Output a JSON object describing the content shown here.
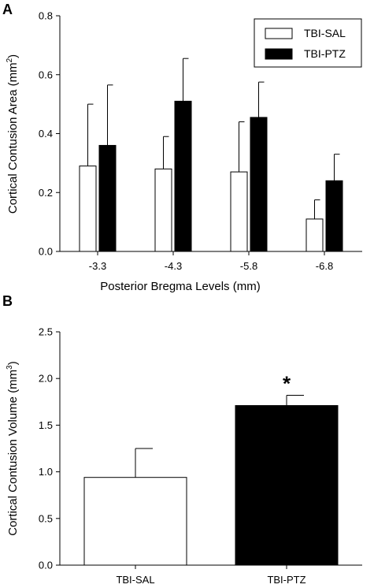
{
  "panels": {
    "a": {
      "label": "A"
    },
    "b": {
      "label": "B"
    }
  },
  "chart_data": [
    {
      "type": "bar",
      "categories": [
        "-3.3",
        "-4.3",
        "-5.8",
        "-6.8"
      ],
      "series": [
        {
          "name": "TBI-SAL",
          "values": [
            0.29,
            0.28,
            0.27,
            0.11
          ],
          "errors": [
            0.21,
            0.11,
            0.17,
            0.065
          ],
          "color": "#ffffff"
        },
        {
          "name": "TBI-PTZ",
          "values": [
            0.36,
            0.51,
            0.455,
            0.24
          ],
          "errors": [
            0.205,
            0.145,
            0.12,
            0.09
          ],
          "color": "#000000"
        }
      ],
      "xlabel": "Posterior Bregma Levels (mm)",
      "ylabel": "Cortical Contusion Area (mm",
      "ylabel_sup": "2",
      "ylabel_tail": ")",
      "ylim": [
        0,
        0.8
      ],
      "yticks": [
        "0.0",
        "0.2",
        "0.4",
        "0.6",
        "0.8"
      ],
      "legend": "top-right",
      "grid": false
    },
    {
      "type": "bar",
      "categories": [
        "TBI-SAL",
        "TBI-PTZ"
      ],
      "values": [
        0.94,
        1.71
      ],
      "errors": [
        0.31,
        0.11
      ],
      "colors": [
        "#ffffff",
        "#000000"
      ],
      "annotations": [
        {
          "category": "TBI-PTZ",
          "text": "*"
        }
      ],
      "ylabel": "Cortical Contusion Volume (mm",
      "ylabel_sup": "3",
      "ylabel_tail": ")",
      "ylim": [
        0,
        2.5
      ],
      "yticks": [
        "0.0",
        "0.5",
        "1.0",
        "1.5",
        "2.0",
        "2.5"
      ],
      "grid": false
    }
  ]
}
